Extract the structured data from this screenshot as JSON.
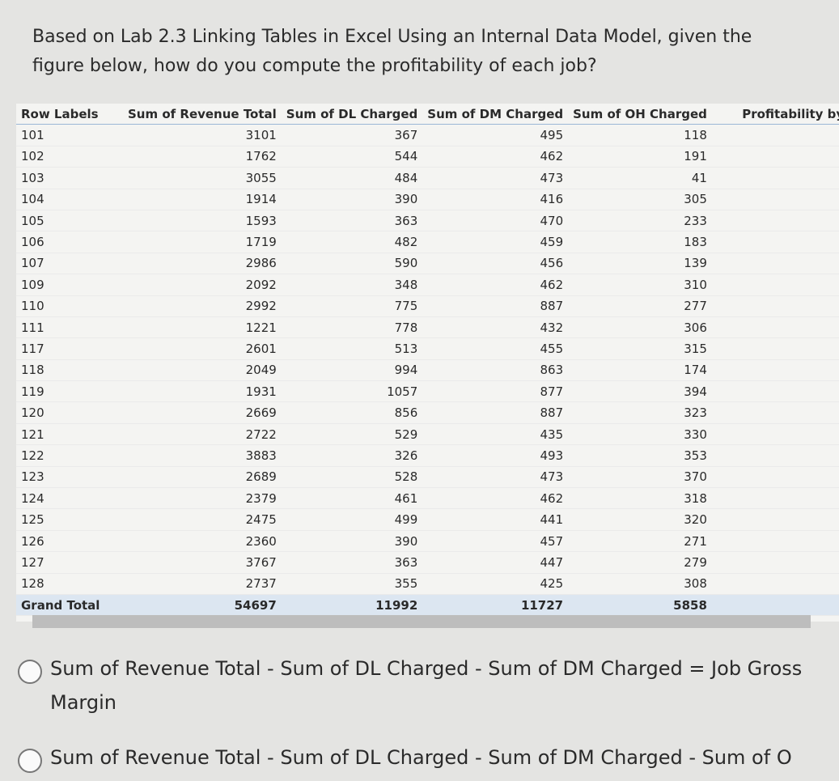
{
  "question": "Based on Lab 2.3 Linking Tables in Excel Using an Internal Data Model, given the figure below, how do you compute the profitability of each job?",
  "table": {
    "headers": [
      "Row Labels",
      "Sum of Revenue Total",
      "Sum of DL Charged",
      "Sum of DM Charged",
      "Sum of OH Charged",
      "Profitability by J"
    ],
    "rows": [
      [
        "101",
        3101,
        367,
        495,
        118
      ],
      [
        "102",
        1762,
        544,
        462,
        191
      ],
      [
        "103",
        3055,
        484,
        473,
        41
      ],
      [
        "104",
        1914,
        390,
        416,
        305
      ],
      [
        "105",
        1593,
        363,
        470,
        233
      ],
      [
        "106",
        1719,
        482,
        459,
        183
      ],
      [
        "107",
        2986,
        590,
        456,
        139
      ],
      [
        "109",
        2092,
        348,
        462,
        310
      ],
      [
        "110",
        2992,
        775,
        887,
        277
      ],
      [
        "111",
        1221,
        778,
        432,
        306
      ],
      [
        "117",
        2601,
        513,
        455,
        315
      ],
      [
        "118",
        2049,
        994,
        863,
        174
      ],
      [
        "119",
        1931,
        1057,
        877,
        394
      ],
      [
        "120",
        2669,
        856,
        887,
        323
      ],
      [
        "121",
        2722,
        529,
        435,
        330
      ],
      [
        "122",
        3883,
        326,
        493,
        353
      ],
      [
        "123",
        2689,
        528,
        473,
        370
      ],
      [
        "124",
        2379,
        461,
        462,
        318
      ],
      [
        "125",
        2475,
        499,
        441,
        320
      ],
      [
        "126",
        2360,
        390,
        457,
        271
      ],
      [
        "127",
        3767,
        363,
        447,
        279
      ],
      [
        "128",
        2737,
        355,
        425,
        308
      ]
    ],
    "total": [
      "Grand Total",
      54697,
      11992,
      11727,
      5858
    ]
  },
  "options": [
    "Sum of Revenue Total - Sum of DL Charged - Sum of DM Charged = Job Gross Margin",
    "Sum of Revenue Total - Sum of DL Charged - Sum of DM Charged - Sum of O"
  ]
}
